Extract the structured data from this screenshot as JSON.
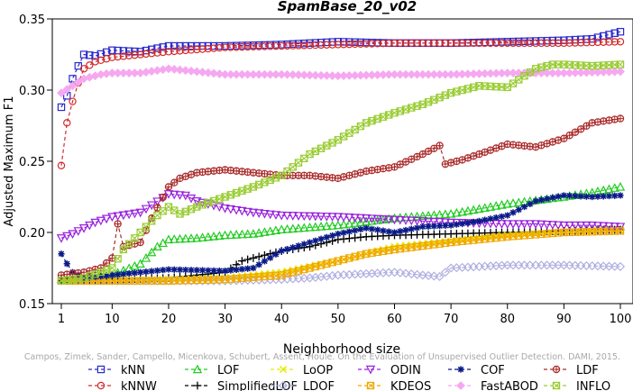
{
  "chart_data": {
    "type": "line",
    "title": "SpamBase_20_v02",
    "xlabel": "Neighborhood size",
    "ylabel": "Adjusted Maximum F1",
    "xlim": [
      1,
      100
    ],
    "ylim": [
      0.15,
      0.35
    ],
    "x_ticks": [
      1,
      10,
      20,
      30,
      40,
      50,
      60,
      70,
      80,
      90,
      100
    ],
    "y_ticks": [
      0.15,
      0.2,
      0.25,
      0.3,
      0.35
    ],
    "x_tick_labels": [
      "1",
      "10",
      "20",
      "30",
      "40",
      "50",
      "60",
      "70",
      "80",
      "90",
      "100"
    ],
    "y_tick_labels": [
      "0.15",
      "0.20",
      "0.25",
      "0.30",
      "0.35"
    ],
    "grid": false,
    "legend_position": "bottom",
    "watermark": "Campos, Zimek, Sander, Campello, Micenkova, Schubert, Assent, Houle. On the Evaluation of Unsupervised Outlier Detection. DAMI, 2015.",
    "series": [
      {
        "name": "kNN",
        "color": "#2a2acc",
        "marker": "square",
        "points": [
          [
            1,
            0.288
          ],
          [
            2,
            0.296
          ],
          [
            3,
            0.308
          ],
          [
            4,
            0.317
          ],
          [
            5,
            0.325
          ],
          [
            7,
            0.324
          ],
          [
            10,
            0.328
          ],
          [
            15,
            0.327
          ],
          [
            20,
            0.331
          ],
          [
            30,
            0.331
          ],
          [
            40,
            0.332
          ],
          [
            50,
            0.334
          ],
          [
            60,
            0.333
          ],
          [
            70,
            0.333
          ],
          [
            80,
            0.334
          ],
          [
            90,
            0.335
          ],
          [
            95,
            0.336
          ],
          [
            100,
            0.341
          ]
        ]
      },
      {
        "name": "kNNW",
        "color": "#d42a2a",
        "marker": "circle",
        "points": [
          [
            1,
            0.247
          ],
          [
            2,
            0.277
          ],
          [
            3,
            0.292
          ],
          [
            4,
            0.305
          ],
          [
            5,
            0.315
          ],
          [
            7,
            0.32
          ],
          [
            10,
            0.323
          ],
          [
            15,
            0.325
          ],
          [
            20,
            0.327
          ],
          [
            30,
            0.33
          ],
          [
            40,
            0.331
          ],
          [
            50,
            0.332
          ],
          [
            60,
            0.333
          ],
          [
            70,
            0.333
          ],
          [
            80,
            0.333
          ],
          [
            90,
            0.333
          ],
          [
            100,
            0.334
          ]
        ]
      },
      {
        "name": "LOF",
        "color": "#22cc22",
        "marker": "triangle-up",
        "points": [
          [
            1,
            0.167
          ],
          [
            5,
            0.167
          ],
          [
            10,
            0.17
          ],
          [
            15,
            0.178
          ],
          [
            18,
            0.19
          ],
          [
            20,
            0.195
          ],
          [
            25,
            0.196
          ],
          [
            30,
            0.198
          ],
          [
            35,
            0.199
          ],
          [
            40,
            0.202
          ],
          [
            50,
            0.205
          ],
          [
            60,
            0.21
          ],
          [
            70,
            0.213
          ],
          [
            80,
            0.22
          ],
          [
            90,
            0.225
          ],
          [
            95,
            0.228
          ],
          [
            100,
            0.232
          ]
        ]
      },
      {
        "name": "SimplifiedLOF",
        "color": "#000000",
        "marker": "plus",
        "points": [
          [
            1,
            0.166
          ],
          [
            10,
            0.167
          ],
          [
            20,
            0.168
          ],
          [
            30,
            0.172
          ],
          [
            33,
            0.18
          ],
          [
            36,
            0.183
          ],
          [
            40,
            0.187
          ],
          [
            45,
            0.19
          ],
          [
            50,
            0.195
          ],
          [
            55,
            0.197
          ],
          [
            60,
            0.198
          ],
          [
            70,
            0.199
          ],
          [
            80,
            0.2
          ],
          [
            90,
            0.201
          ],
          [
            100,
            0.202
          ]
        ]
      },
      {
        "name": "LoOP",
        "color": "#e8e800",
        "marker": "x",
        "points": [
          [
            1,
            0.166
          ],
          [
            10,
            0.166
          ],
          [
            20,
            0.167
          ],
          [
            30,
            0.168
          ],
          [
            40,
            0.172
          ],
          [
            50,
            0.18
          ],
          [
            55,
            0.185
          ],
          [
            60,
            0.19
          ],
          [
            70,
            0.194
          ],
          [
            80,
            0.198
          ],
          [
            90,
            0.2
          ],
          [
            100,
            0.202
          ]
        ]
      },
      {
        "name": "LDOF",
        "color": "#b0b0e0",
        "marker": "diamond",
        "points": [
          [
            1,
            0.166
          ],
          [
            10,
            0.166
          ],
          [
            20,
            0.166
          ],
          [
            30,
            0.166
          ],
          [
            40,
            0.167
          ],
          [
            45,
            0.168
          ],
          [
            50,
            0.17
          ],
          [
            55,
            0.171
          ],
          [
            60,
            0.172
          ],
          [
            65,
            0.17
          ],
          [
            68,
            0.169
          ],
          [
            70,
            0.175
          ],
          [
            75,
            0.176
          ],
          [
            80,
            0.177
          ],
          [
            90,
            0.177
          ],
          [
            100,
            0.176
          ]
        ]
      },
      {
        "name": "ODIN",
        "color": "#9922dd",
        "marker": "triangle-down",
        "points": [
          [
            1,
            0.196
          ],
          [
            3,
            0.199
          ],
          [
            5,
            0.203
          ],
          [
            7,
            0.207
          ],
          [
            10,
            0.211
          ],
          [
            15,
            0.214
          ],
          [
            20,
            0.227
          ],
          [
            23,
            0.226
          ],
          [
            25,
            0.222
          ],
          [
            30,
            0.217
          ],
          [
            35,
            0.214
          ],
          [
            40,
            0.212
          ],
          [
            50,
            0.211
          ],
          [
            60,
            0.209
          ],
          [
            70,
            0.207
          ],
          [
            80,
            0.206
          ],
          [
            85,
            0.206
          ],
          [
            90,
            0.205
          ],
          [
            95,
            0.205
          ],
          [
            100,
            0.204
          ]
        ]
      },
      {
        "name": "KDEOS",
        "color": "#f0a800",
        "marker": "hatched-square",
        "points": [
          [
            1,
            0.166
          ],
          [
            10,
            0.166
          ],
          [
            20,
            0.166
          ],
          [
            30,
            0.167
          ],
          [
            40,
            0.17
          ],
          [
            45,
            0.175
          ],
          [
            50,
            0.18
          ],
          [
            55,
            0.185
          ],
          [
            60,
            0.188
          ],
          [
            70,
            0.193
          ],
          [
            80,
            0.197
          ],
          [
            90,
            0.2
          ],
          [
            100,
            0.201
          ]
        ]
      },
      {
        "name": "COF",
        "color": "#0a1a88",
        "marker": "star",
        "points": [
          [
            1,
            0.185
          ],
          [
            2,
            0.178
          ],
          [
            3,
            0.172
          ],
          [
            5,
            0.168
          ],
          [
            10,
            0.17
          ],
          [
            20,
            0.174
          ],
          [
            30,
            0.173
          ],
          [
            35,
            0.175
          ],
          [
            40,
            0.187
          ],
          [
            45,
            0.193
          ],
          [
            50,
            0.199
          ],
          [
            55,
            0.203
          ],
          [
            60,
            0.2
          ],
          [
            65,
            0.204
          ],
          [
            70,
            0.205
          ],
          [
            75,
            0.208
          ],
          [
            80,
            0.212
          ],
          [
            85,
            0.222
          ],
          [
            90,
            0.226
          ],
          [
            95,
            0.225
          ],
          [
            100,
            0.226
          ]
        ]
      },
      {
        "name": "FastABOD",
        "color": "#f5a8f0",
        "marker": "diamond-filled",
        "points": [
          [
            1,
            0.298
          ],
          [
            3,
            0.303
          ],
          [
            5,
            0.308
          ],
          [
            8,
            0.311
          ],
          [
            10,
            0.312
          ],
          [
            15,
            0.312
          ],
          [
            20,
            0.315
          ],
          [
            25,
            0.313
          ],
          [
            30,
            0.311
          ],
          [
            40,
            0.311
          ],
          [
            50,
            0.31
          ],
          [
            60,
            0.311
          ],
          [
            70,
            0.311
          ],
          [
            80,
            0.312
          ],
          [
            90,
            0.312
          ],
          [
            100,
            0.313
          ]
        ]
      },
      {
        "name": "LDF",
        "color": "#aa2a2a",
        "marker": "circle-plus",
        "points": [
          [
            1,
            0.17
          ],
          [
            5,
            0.172
          ],
          [
            8,
            0.175
          ],
          [
            10,
            0.182
          ],
          [
            11,
            0.206
          ],
          [
            12,
            0.19
          ],
          [
            15,
            0.193
          ],
          [
            17,
            0.21
          ],
          [
            20,
            0.232
          ],
          [
            22,
            0.238
          ],
          [
            25,
            0.242
          ],
          [
            30,
            0.244
          ],
          [
            35,
            0.242
          ],
          [
            40,
            0.24
          ],
          [
            45,
            0.24
          ],
          [
            50,
            0.238
          ],
          [
            55,
            0.243
          ],
          [
            60,
            0.246
          ],
          [
            65,
            0.255
          ],
          [
            68,
            0.261
          ],
          [
            69,
            0.248
          ],
          [
            72,
            0.251
          ],
          [
            75,
            0.255
          ],
          [
            80,
            0.262
          ],
          [
            85,
            0.26
          ],
          [
            90,
            0.266
          ],
          [
            95,
            0.277
          ],
          [
            100,
            0.28
          ]
        ]
      },
      {
        "name": "INFLO",
        "color": "#99cc33",
        "marker": "hatched-square",
        "points": [
          [
            1,
            0.166
          ],
          [
            5,
            0.168
          ],
          [
            10,
            0.175
          ],
          [
            12,
            0.188
          ],
          [
            15,
            0.2
          ],
          [
            18,
            0.212
          ],
          [
            20,
            0.218
          ],
          [
            22,
            0.213
          ],
          [
            25,
            0.218
          ],
          [
            30,
            0.225
          ],
          [
            35,
            0.232
          ],
          [
            40,
            0.24
          ],
          [
            45,
            0.255
          ],
          [
            50,
            0.265
          ],
          [
            55,
            0.277
          ],
          [
            60,
            0.284
          ],
          [
            65,
            0.29
          ],
          [
            70,
            0.298
          ],
          [
            75,
            0.303
          ],
          [
            80,
            0.302
          ],
          [
            83,
            0.31
          ],
          [
            85,
            0.315
          ],
          [
            88,
            0.318
          ],
          [
            90,
            0.318
          ],
          [
            95,
            0.317
          ],
          [
            100,
            0.318
          ]
        ]
      }
    ]
  }
}
